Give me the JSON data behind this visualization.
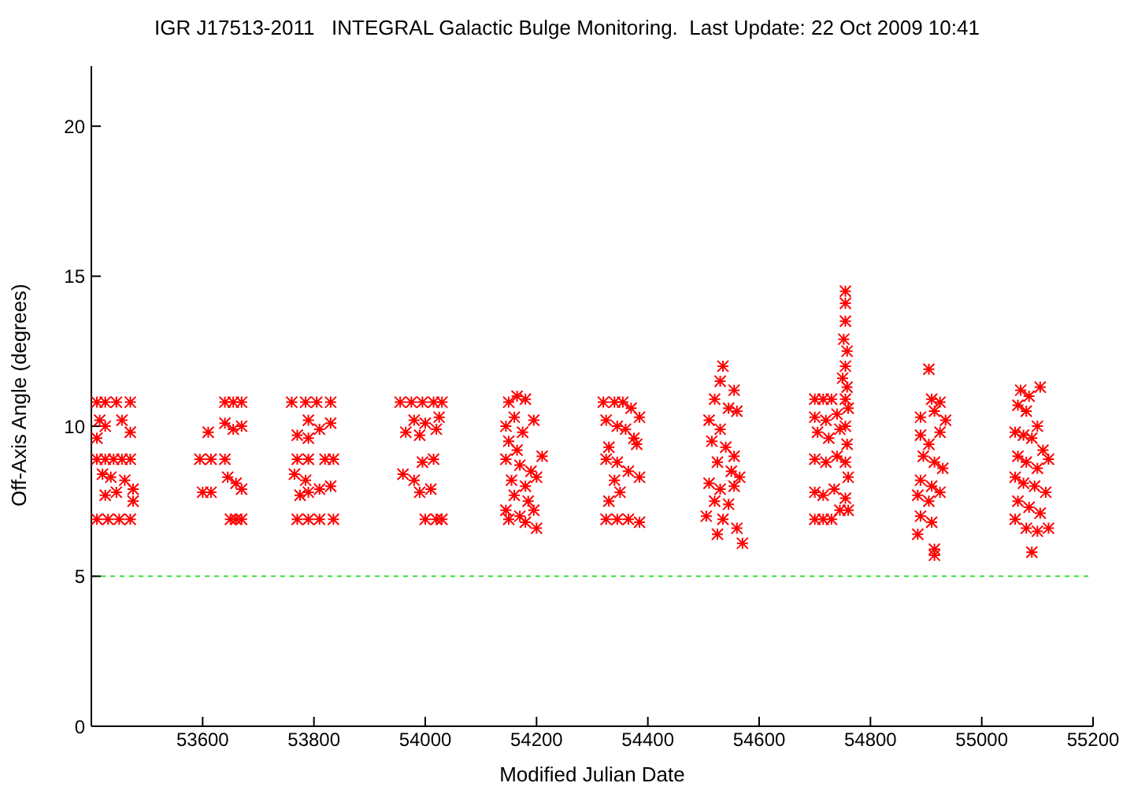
{
  "chart_data": {
    "type": "scatter",
    "title": "IGR J17513-2011   INTEGRAL Galactic Bulge Monitoring.  Last Update: 22 Oct 2009 10:41",
    "xlabel": "Modified Julian Date",
    "ylabel": "Off-Axis Angle (degrees)",
    "xlim": [
      53400,
      55200
    ],
    "xticks": [
      53600,
      53800,
      54000,
      54200,
      54400,
      54600,
      54800,
      55000,
      55200
    ],
    "ylim": [
      0,
      22
    ],
    "yticks": [
      0,
      5,
      10,
      15,
      20
    ],
    "grid": false,
    "legend": false,
    "marker": "cross",
    "ref_lines": [
      {
        "axis": "y",
        "value": 5,
        "color": "#33dd33",
        "line_style": "dashed"
      }
    ],
    "series": [
      {
        "color": "#ff0000",
        "x": [
          53410,
          53425,
          53445,
          53470,
          53415,
          53425,
          53455,
          53470,
          53410,
          53410,
          53425,
          53440,
          53455,
          53470,
          53420,
          53435,
          53460,
          53475,
          53425,
          53445,
          53475,
          53410,
          53430,
          53450,
          53470,
          53595,
          53615,
          53640,
          53600,
          53615,
          53610,
          53640,
          53655,
          53670,
          53640,
          53655,
          53670,
          53645,
          53660,
          53670,
          53650,
          53660,
          53670,
          53760,
          53785,
          53805,
          53830,
          53790,
          53810,
          53830,
          53770,
          53790,
          53770,
          53790,
          53820,
          53835,
          53765,
          53785,
          53775,
          53790,
          53810,
          53830,
          53770,
          53790,
          53810,
          53835,
          53955,
          53975,
          53995,
          54015,
          54030,
          53980,
          54000,
          54025,
          53965,
          53990,
          54020,
          53960,
          53980,
          53995,
          54015,
          53990,
          54010,
          54000,
          54020,
          54030,
          54150,
          54165,
          54180,
          54145,
          54160,
          54175,
          54195,
          54150,
          54165,
          54145,
          54170,
          54190,
          54155,
          54180,
          54200,
          54160,
          54185,
          54145,
          54170,
          54195,
          54150,
          54180,
          54200,
          54210,
          54320,
          54340,
          54355,
          54370,
          54385,
          54325,
          54345,
          54360,
          54375,
          54330,
          54380,
          54325,
          54345,
          54365,
          54340,
          54385,
          54350,
          54330,
          54325,
          54345,
          54365,
          54385,
          54535,
          54530,
          54555,
          54520,
          54545,
          54510,
          54530,
          54560,
          54515,
          54540,
          54555,
          54525,
          54550,
          54510,
          54530,
          54555,
          54565,
          54520,
          54545,
          54535,
          54560,
          54525,
          54570,
          54505,
          54700,
          54715,
          54730,
          54700,
          54720,
          54740,
          54705,
          54725,
          54745,
          54700,
          54720,
          54740,
          54700,
          54715,
          54735,
          54700,
          54715,
          54730,
          54745,
          54755,
          54755,
          54755,
          54752,
          54758,
          54755,
          54750,
          54758,
          54755,
          54760,
          54755,
          54758,
          54755,
          54760,
          54755,
          54760,
          54905,
          54910,
          54925,
          54890,
          54915,
          54935,
          54890,
          54905,
          54925,
          54895,
          54915,
          54930,
          54890,
          54910,
          54885,
          54905,
          54925,
          54890,
          54910,
          54885,
          54915,
          54915,
          55070,
          55085,
          55105,
          55065,
          55080,
          55100,
          55060,
          55075,
          55090,
          55110,
          55065,
          55080,
          55100,
          55120,
          55060,
          55075,
          55095,
          55115,
          55065,
          55085,
          55105,
          55060,
          55080,
          55100,
          55120,
          55090
        ],
        "values": [
          10.8,
          10.8,
          10.8,
          10.8,
          10.2,
          10.0,
          10.2,
          9.8,
          9.6,
          8.9,
          8.9,
          8.9,
          8.9,
          8.9,
          8.4,
          8.3,
          8.2,
          7.9,
          7.7,
          7.8,
          7.5,
          6.9,
          6.9,
          6.9,
          6.9,
          8.9,
          8.9,
          8.9,
          7.8,
          7.8,
          9.8,
          10.8,
          10.8,
          10.8,
          10.1,
          9.9,
          10.0,
          8.3,
          8.1,
          7.9,
          6.9,
          6.9,
          6.9,
          10.8,
          10.8,
          10.8,
          10.8,
          10.2,
          9.9,
          10.1,
          9.7,
          9.6,
          8.9,
          8.9,
          8.9,
          8.9,
          8.4,
          8.2,
          7.7,
          7.8,
          7.9,
          8.0,
          6.9,
          6.9,
          6.9,
          6.9,
          10.8,
          10.8,
          10.8,
          10.8,
          10.8,
          10.2,
          10.1,
          10.3,
          9.8,
          9.7,
          9.9,
          8.4,
          8.2,
          8.8,
          8.9,
          7.8,
          7.9,
          6.9,
          6.9,
          6.9,
          10.8,
          11.0,
          10.9,
          10.0,
          10.3,
          9.8,
          10.2,
          9.5,
          9.2,
          8.9,
          8.7,
          8.5,
          8.2,
          8.0,
          8.3,
          7.7,
          7.5,
          7.2,
          7.0,
          7.2,
          6.9,
          6.8,
          6.6,
          9.0,
          10.8,
          10.8,
          10.8,
          10.6,
          10.3,
          10.2,
          10.0,
          9.9,
          9.6,
          9.3,
          9.4,
          8.9,
          8.8,
          8.5,
          8.2,
          8.3,
          7.8,
          7.5,
          6.9,
          6.9,
          6.9,
          6.8,
          12.0,
          11.5,
          11.2,
          10.9,
          10.6,
          10.2,
          9.9,
          10.5,
          9.5,
          9.3,
          9.0,
          8.8,
          8.5,
          8.1,
          7.9,
          8.0,
          8.3,
          7.5,
          7.4,
          6.9,
          6.6,
          6.4,
          6.1,
          7.0,
          10.9,
          10.9,
          10.9,
          10.3,
          10.2,
          10.4,
          9.8,
          9.6,
          9.9,
          8.9,
          8.8,
          9.0,
          7.8,
          7.7,
          7.9,
          6.9,
          6.9,
          6.9,
          7.2,
          14.5,
          14.1,
          13.5,
          12.9,
          12.5,
          12.0,
          11.6,
          11.3,
          10.9,
          10.6,
          10.0,
          9.4,
          8.8,
          8.3,
          7.6,
          7.2,
          11.9,
          10.9,
          10.8,
          10.3,
          10.5,
          10.2,
          9.7,
          9.4,
          9.8,
          9.0,
          8.8,
          8.6,
          8.2,
          8.0,
          7.7,
          7.5,
          7.8,
          7.0,
          6.8,
          6.4,
          5.9,
          5.7,
          11.2,
          11.0,
          11.3,
          10.7,
          10.5,
          10.0,
          9.8,
          9.7,
          9.6,
          9.2,
          9.0,
          8.8,
          8.6,
          8.9,
          8.3,
          8.1,
          8.0,
          7.8,
          7.5,
          7.3,
          7.1,
          6.9,
          6.6,
          6.5,
          6.6,
          5.8
        ]
      }
    ]
  }
}
